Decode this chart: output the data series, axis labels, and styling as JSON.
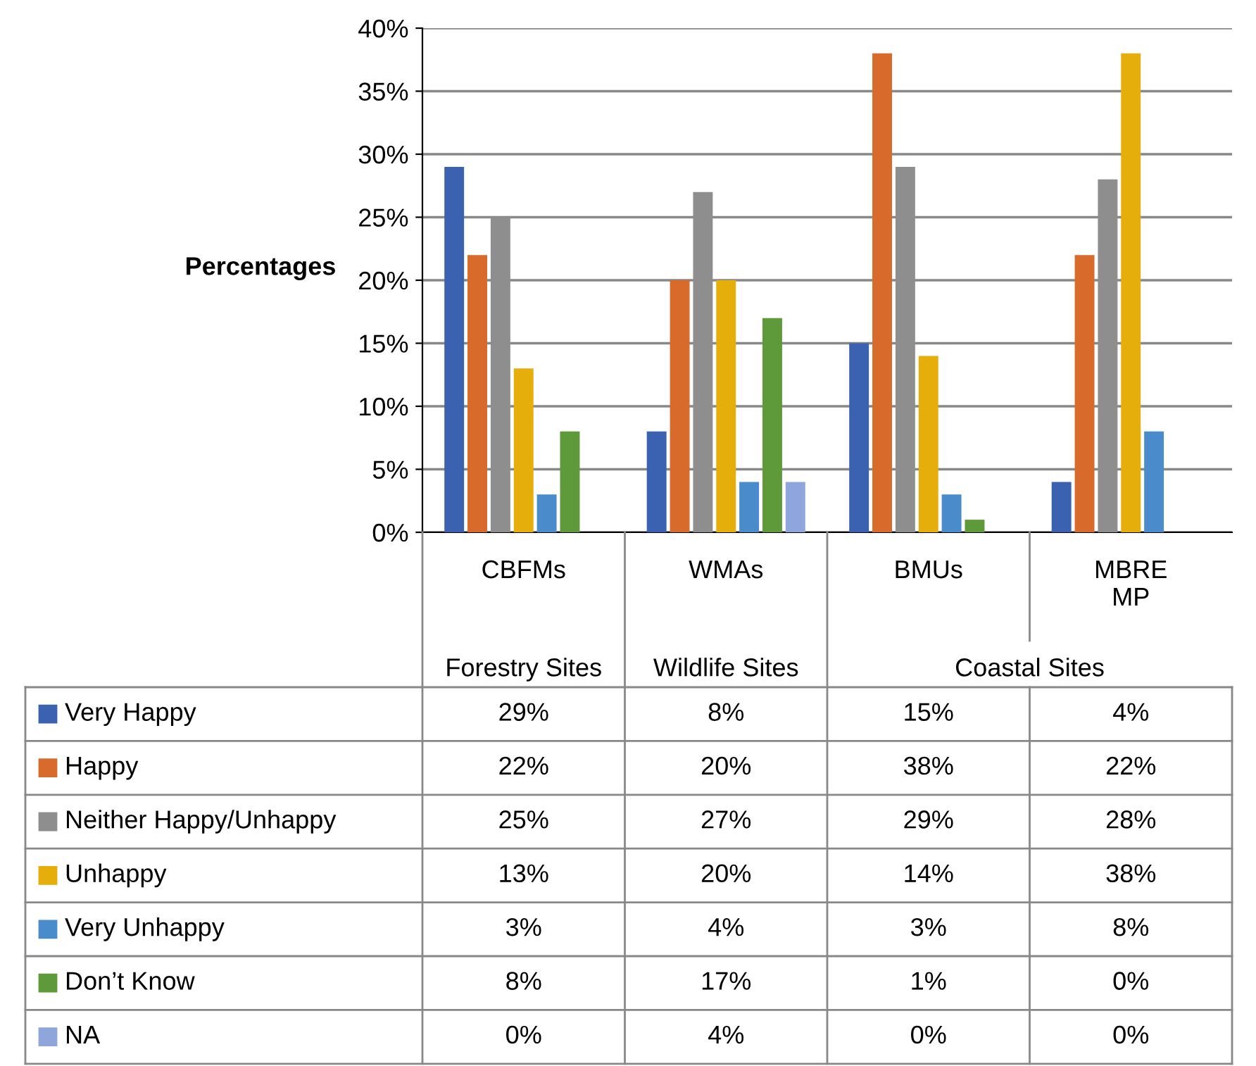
{
  "chart_data": {
    "type": "bar",
    "ylabel": "Percentages",
    "categories": [
      "CBFMs",
      "WMAs",
      "BMUs",
      "MBRE\nMP"
    ],
    "series": [
      {
        "name": "Very Happy",
        "color": "#3a62b0",
        "values": [
          29,
          8,
          15,
          4
        ],
        "value_labels": [
          "29%",
          "8%",
          "15%",
          "4%"
        ]
      },
      {
        "name": "Happy",
        "color": "#d86b2c",
        "values": [
          22,
          20,
          38,
          22
        ],
        "value_labels": [
          "22%",
          "20%",
          "38%",
          "22%"
        ]
      },
      {
        "name": "Neither Happy/Unhappy",
        "color": "#8e8e8e",
        "values": [
          25,
          27,
          29,
          28
        ],
        "value_labels": [
          "25%",
          "27%",
          "29%",
          "28%"
        ]
      },
      {
        "name": "Unhappy",
        "color": "#e6ae0a",
        "values": [
          13,
          20,
          14,
          38
        ],
        "value_labels": [
          "13%",
          "20%",
          "14%",
          "38%"
        ]
      },
      {
        "name": "Very Unhappy",
        "color": "#4a8ccb",
        "values": [
          3,
          4,
          3,
          8
        ],
        "value_labels": [
          "3%",
          "4%",
          "3%",
          "8%"
        ]
      },
      {
        "name": "Don’t Know",
        "color": "#5f9a3a",
        "values": [
          8,
          17,
          1,
          0
        ],
        "value_labels": [
          "8%",
          "17%",
          "1%",
          "0%"
        ]
      },
      {
        "name": "NA",
        "color": "#8fa6dc",
        "values": [
          0,
          4,
          0,
          0
        ],
        "value_labels": [
          "0%",
          "4%",
          "0%",
          "0%"
        ]
      }
    ],
    "ylim": [
      0,
      40
    ],
    "yticks": [
      {
        "value": 0,
        "label": "0%"
      },
      {
        "value": 5,
        "label": "5%"
      },
      {
        "value": 10,
        "label": "10%"
      },
      {
        "value": 15,
        "label": "15%"
      },
      {
        "value": 20,
        "label": "20%"
      },
      {
        "value": 25,
        "label": "25%"
      },
      {
        "value": 30,
        "label": "30%"
      },
      {
        "value": 35,
        "label": "35%"
      },
      {
        "value": 40,
        "label": "40%"
      }
    ],
    "grid": "y",
    "legend": "bottom",
    "annotations": [
      "Forestry Sites",
      "Wildlife Sites",
      "Coastal Sites"
    ]
  }
}
